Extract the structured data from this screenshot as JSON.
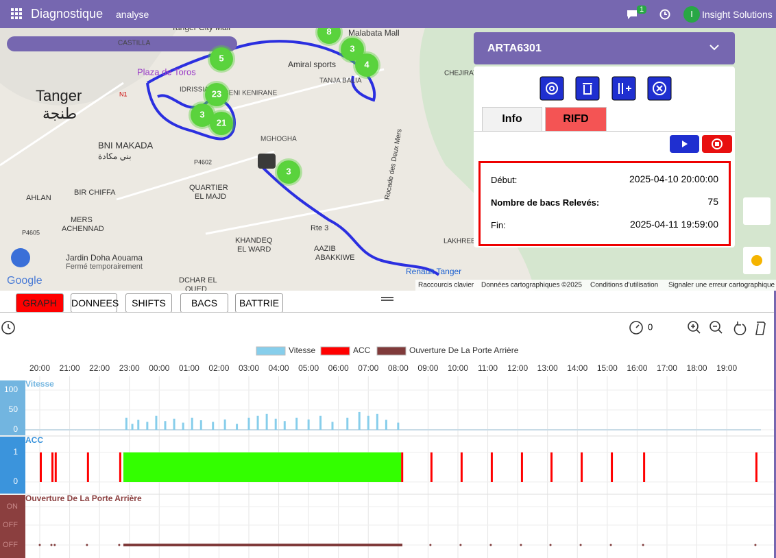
{
  "header": {
    "title": "Diagnostique",
    "subtitle": "analyse",
    "badge": "1",
    "avatar": "I",
    "user": "Insight Solutions"
  },
  "map": {
    "labels": [
      "Tanger",
      "طنجة",
      "BNI MAKADA",
      "بني مكادة",
      "CASTILLA",
      "Plaza de Toros",
      "IDRISSIA",
      "BENI KENIRANE",
      "MGHOGHA",
      "QUARTIER",
      "EL MAJD",
      "BIR CHIFFA",
      "AHLAN",
      "MERS",
      "ACHENNAD",
      "Jardin Doha Aouama",
      "Fermé temporairement",
      "KHANDEQ",
      "EL WARD",
      "AAZIB",
      "ABAKKIWE",
      "DCHAR EL",
      "OUED",
      "Amiral sports",
      "TANJA BALIA",
      "CHEJIRATE",
      "LAKHREB",
      "Rte 3",
      "Rocade des Deux Mers",
      "Malabata Mall",
      "Tanger City Mall",
      "P4602",
      "P4605",
      "N1",
      "Renault Tanger"
    ],
    "clusters": [
      "8",
      "3",
      "4",
      "5",
      "23",
      "3",
      "21",
      "3"
    ],
    "logo": "Google",
    "footer": [
      "Raccourcis clavier",
      "Données cartographiques ©2025",
      "Conditions d'utilisation",
      "Signaler une erreur cartographique"
    ]
  },
  "panel": {
    "vehicle": "ARTA6301",
    "tabs": [
      "Info",
      "RIFD"
    ],
    "rows": [
      {
        "label": "Début:",
        "value": "2025-04-10 20:00:00"
      },
      {
        "label": "Nombre de bacs Relevés:",
        "value": "75"
      },
      {
        "label": "Fin:",
        "value": "2025-04-11 19:59:00"
      }
    ]
  },
  "tabs": [
    "GRAPH",
    "DONNEES",
    "SHIFTS",
    "BACS",
    "BATTRIE"
  ],
  "toolbar": {
    "counter": "0"
  },
  "chart_data": {
    "type": "timeline",
    "series": [
      {
        "name": "Vitesse",
        "color": "#87ceeb"
      },
      {
        "name": "ACC",
        "color": "#ff0000"
      },
      {
        "name": "Ouverture De La Porte Arrière",
        "color": "#7f3a3a"
      }
    ],
    "xticks": [
      "20:00",
      "21:00",
      "22:00",
      "23:00",
      "00:00",
      "01:00",
      "02:00",
      "03:00",
      "04:00",
      "05:00",
      "06:00",
      "07:00",
      "08:00",
      "09:00",
      "10:00",
      "11:00",
      "12:00",
      "13:00",
      "14:00",
      "15:00",
      "16:00",
      "17:00",
      "18:00",
      "19:00"
    ],
    "xlim": [
      0,
      23.98
    ],
    "speed_lim": [
      0,
      100
    ],
    "speed_ticks": [
      0,
      50,
      100
    ],
    "speed": [
      [
        2.9,
        30
      ],
      [
        3.1,
        15
      ],
      [
        3.3,
        25
      ],
      [
        3.6,
        20
      ],
      [
        3.9,
        35
      ],
      [
        4.2,
        22
      ],
      [
        4.5,
        28
      ],
      [
        4.8,
        18
      ],
      [
        5.1,
        30
      ],
      [
        5.4,
        24
      ],
      [
        5.8,
        20
      ],
      [
        6.2,
        26
      ],
      [
        6.6,
        15
      ],
      [
        7,
        30
      ],
      [
        7.3,
        35
      ],
      [
        7.6,
        40
      ],
      [
        7.9,
        28
      ],
      [
        8.2,
        22
      ],
      [
        8.6,
        30
      ],
      [
        9,
        26
      ],
      [
        9.4,
        35
      ],
      [
        9.8,
        20
      ],
      [
        10.3,
        30
      ],
      [
        10.7,
        45
      ],
      [
        11,
        35
      ],
      [
        11.3,
        40
      ],
      [
        11.6,
        25
      ],
      [
        12,
        18
      ]
    ],
    "acc_ticks": [
      0,
      1
    ],
    "acc_on": [
      [
        0,
        0.03
      ],
      [
        0.39,
        0.42
      ],
      [
        0.5,
        0.53
      ],
      [
        1.58,
        1.61
      ],
      [
        2.66,
        2.72
      ],
      [
        12.1,
        12.16
      ],
      [
        13.08,
        13.11
      ],
      [
        14.09,
        14.12
      ],
      [
        15.1,
        15.13
      ],
      [
        16.11,
        16.14
      ],
      [
        17.1,
        17.13
      ],
      [
        18.11,
        18.14
      ],
      [
        19.12,
        19.15
      ],
      [
        20.2,
        20.23
      ],
      [
        23.96,
        23.99
      ]
    ],
    "acc_long": [
      [
        2.8,
        12.1
      ]
    ],
    "door_ticks": [
      "ON",
      "OFF",
      "OFF"
    ],
    "door_off": [
      [
        2.8,
        12.14
      ]
    ]
  }
}
